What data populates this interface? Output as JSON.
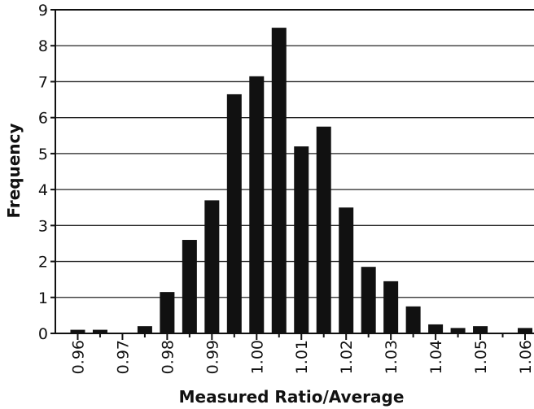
{
  "chart_data": {
    "type": "bar",
    "xlabel": "Measured Ratio/Average",
    "ylabel": "Frequency",
    "ylim": [
      0,
      9
    ],
    "xlim": [
      0.955,
      1.062
    ],
    "yticks": [
      "0",
      "1",
      "2",
      "3",
      "4",
      "5",
      "6",
      "7",
      "8",
      "9"
    ],
    "xticks": [
      "0.96",
      "0.97",
      "0.98",
      "0.99",
      "1.00",
      "1.01",
      "1.02",
      "1.03",
      "1.04",
      "1.05",
      "1.06"
    ],
    "grid": "horizontal",
    "bar_color": "#111111",
    "x": [
      0.96,
      0.965,
      0.97,
      0.975,
      0.98,
      0.985,
      0.99,
      0.995,
      1.0,
      1.005,
      1.01,
      1.015,
      1.02,
      1.025,
      1.03,
      1.035,
      1.04,
      1.045,
      1.05,
      1.055,
      1.06
    ],
    "values": [
      0.1,
      0.1,
      0,
      0.2,
      1.15,
      2.6,
      3.7,
      6.65,
      7.15,
      8.5,
      5.2,
      5.75,
      3.5,
      1.85,
      1.45,
      0.75,
      0.25,
      0.15,
      0.2,
      0,
      0.15
    ]
  }
}
